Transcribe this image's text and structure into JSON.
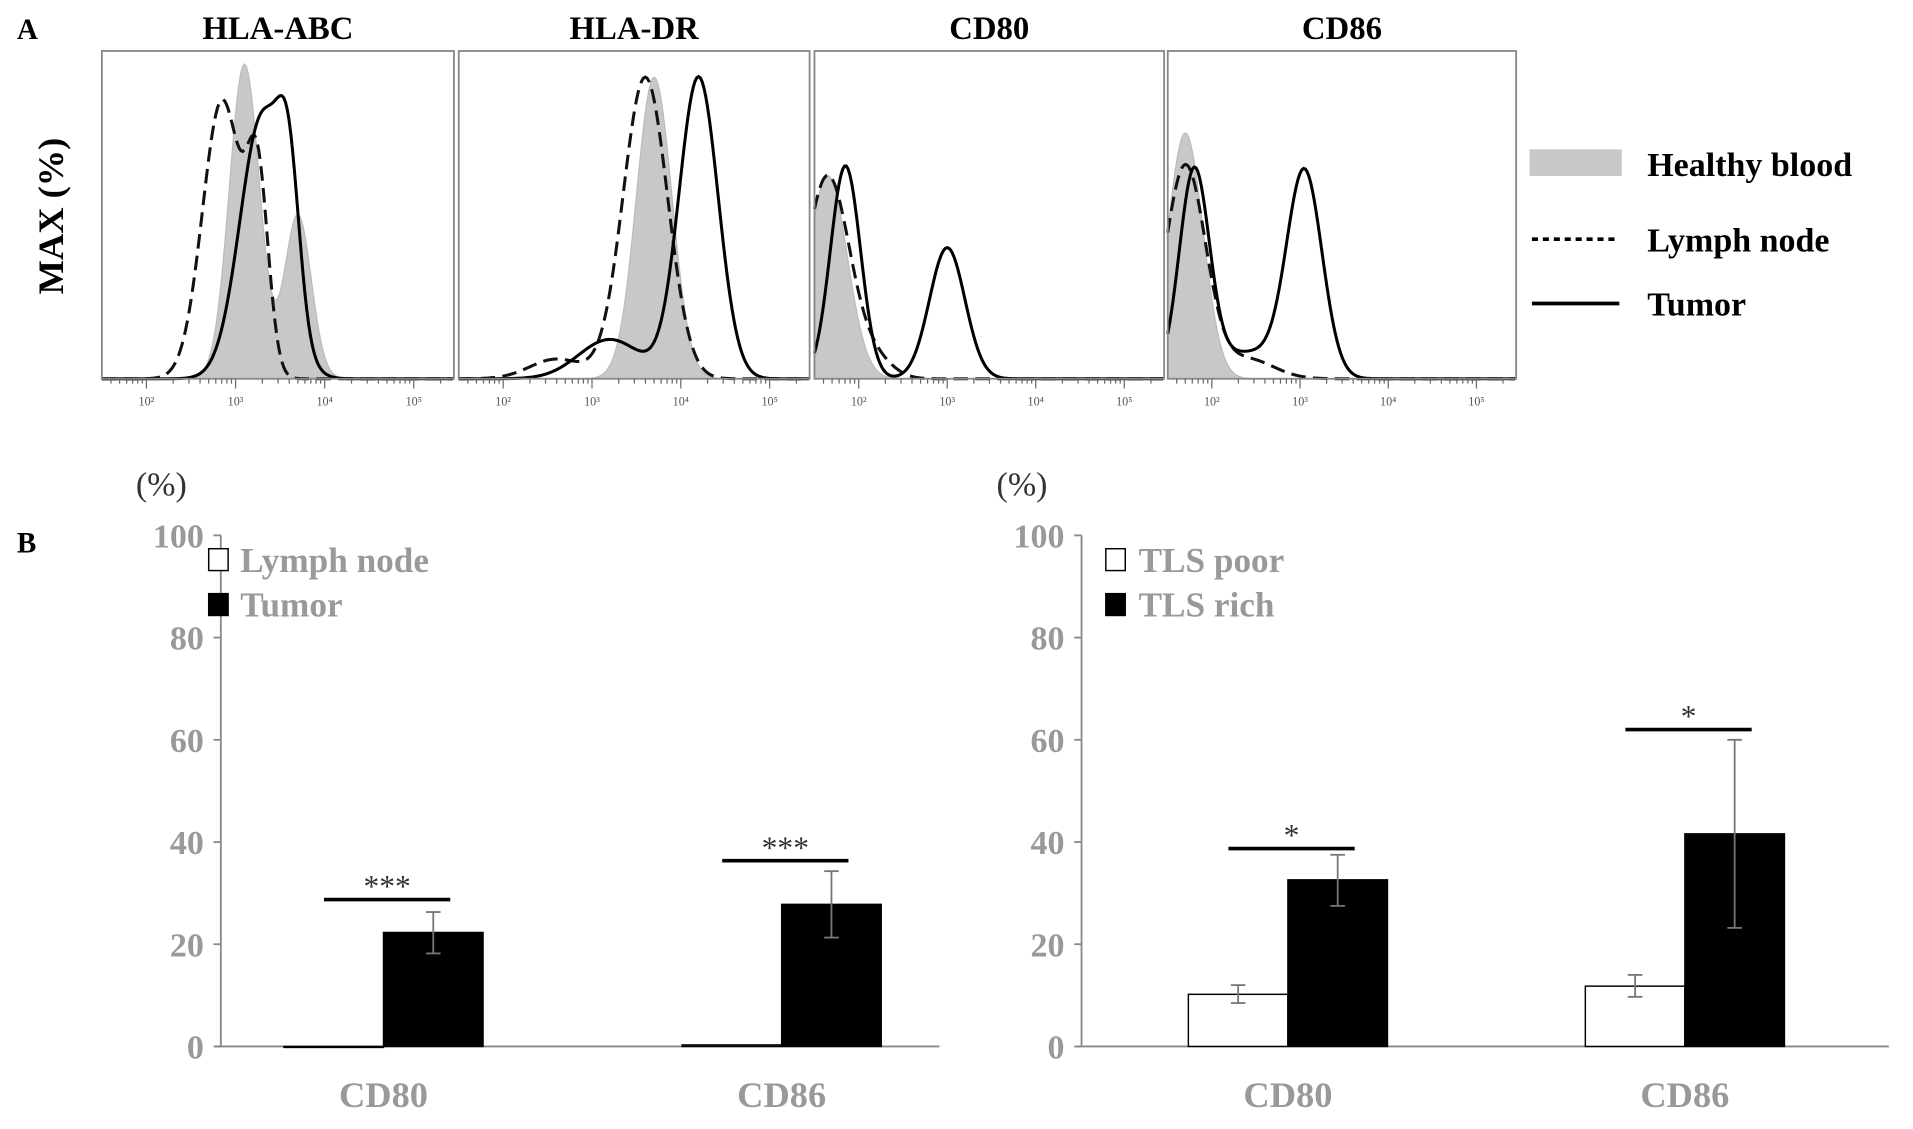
{
  "chart_data": [
    {
      "type": "histogram",
      "panel_label": "A",
      "ylabel": "MAX (%)",
      "x_scale": "log10",
      "xlim_log10": [
        1.5,
        5.45
      ],
      "x_ticks": [
        "10²",
        "10³",
        "10⁴",
        "10⁵"
      ],
      "x_tick_log10": [
        2,
        3,
        4,
        5
      ],
      "legend": [
        {
          "name": "Healthy blood",
          "style": "gray-fill"
        },
        {
          "name": "Lymph node",
          "style": "dashed"
        },
        {
          "name": "Tumor",
          "style": "solid"
        }
      ],
      "legend_placement": "right",
      "panels": [
        {
          "title": "HLA-ABC",
          "series": {
            "healthy": [
              [
                3.1,
                0.17,
                96
              ],
              [
                3.7,
                0.15,
                50
              ]
            ],
            "lymph": [
              [
                2.85,
                0.22,
                85
              ],
              [
                3.25,
                0.12,
                55
              ]
            ],
            "tumor": [
              [
                3.3,
                0.25,
                80
              ],
              [
                3.6,
                0.12,
                40
              ]
            ]
          }
        },
        {
          "title": "HLA-DR",
          "series": {
            "healthy": [
              [
                3.7,
                0.2,
                92
              ]
            ],
            "lymph": [
              [
                3.6,
                0.25,
                92
              ],
              [
                2.6,
                0.3,
                6
              ]
            ],
            "tumor": [
              [
                4.2,
                0.22,
                92
              ],
              [
                3.2,
                0.35,
                12
              ]
            ]
          }
        },
        {
          "title": "CD80",
          "series": {
            "healthy": [
              [
                1.65,
                0.22,
                62
              ]
            ],
            "lymph": [
              [
                1.65,
                0.25,
                62
              ],
              [
                2.2,
                0.2,
                5
              ]
            ],
            "tumor": [
              [
                1.85,
                0.17,
                65
              ],
              [
                3.0,
                0.2,
                40
              ]
            ]
          }
        },
        {
          "title": "CD86",
          "series": {
            "healthy": [
              [
                1.7,
                0.2,
                75
              ]
            ],
            "lymph": [
              [
                1.7,
                0.23,
                65
              ],
              [
                2.4,
                0.3,
                6
              ]
            ],
            "tumor": [
              [
                1.8,
                0.17,
                62
              ],
              [
                3.05,
                0.2,
                62
              ],
              [
                2.4,
                0.4,
                8
              ]
            ]
          }
        }
      ]
    },
    {
      "type": "bar",
      "panel_label": "B",
      "ylabel": "(%)",
      "ylim": [
        0,
        100
      ],
      "y_ticks": [
        "0",
        "20",
        "40",
        "60",
        "80",
        "100"
      ],
      "categories": [
        "CD80",
        "CD86"
      ],
      "series": [
        {
          "name": "Lymph node",
          "color": "#ffffff",
          "values": [
            0.0,
            0.3
          ],
          "err_low": [
            0,
            0
          ],
          "err_high": [
            0,
            0
          ]
        },
        {
          "name": "Tumor",
          "color": "#000000",
          "values": [
            22.3,
            27.8
          ],
          "err_low": [
            18.2,
            21.3
          ],
          "err_high": [
            26.3,
            34.3
          ]
        }
      ],
      "significance": [
        "***",
        "***"
      ],
      "legend_placement": "top-left"
    },
    {
      "type": "bar",
      "ylabel": "(%)",
      "ylim": [
        0,
        100
      ],
      "y_ticks": [
        "0",
        "20",
        "40",
        "60",
        "80",
        "100"
      ],
      "categories": [
        "CD80",
        "CD86"
      ],
      "series": [
        {
          "name": "TLS poor",
          "color": "#ffffff",
          "values": [
            10.2,
            11.8
          ],
          "err_low": [
            8.5,
            9.7
          ],
          "err_high": [
            12.0,
            14.0
          ]
        },
        {
          "name": "TLS rich",
          "color": "#000000",
          "values": [
            32.6,
            41.6
          ],
          "err_low": [
            27.5,
            23.2
          ],
          "err_high": [
            37.5,
            60.0
          ]
        }
      ],
      "significance": [
        "*",
        "*"
      ],
      "legend_placement": "top-left"
    }
  ]
}
